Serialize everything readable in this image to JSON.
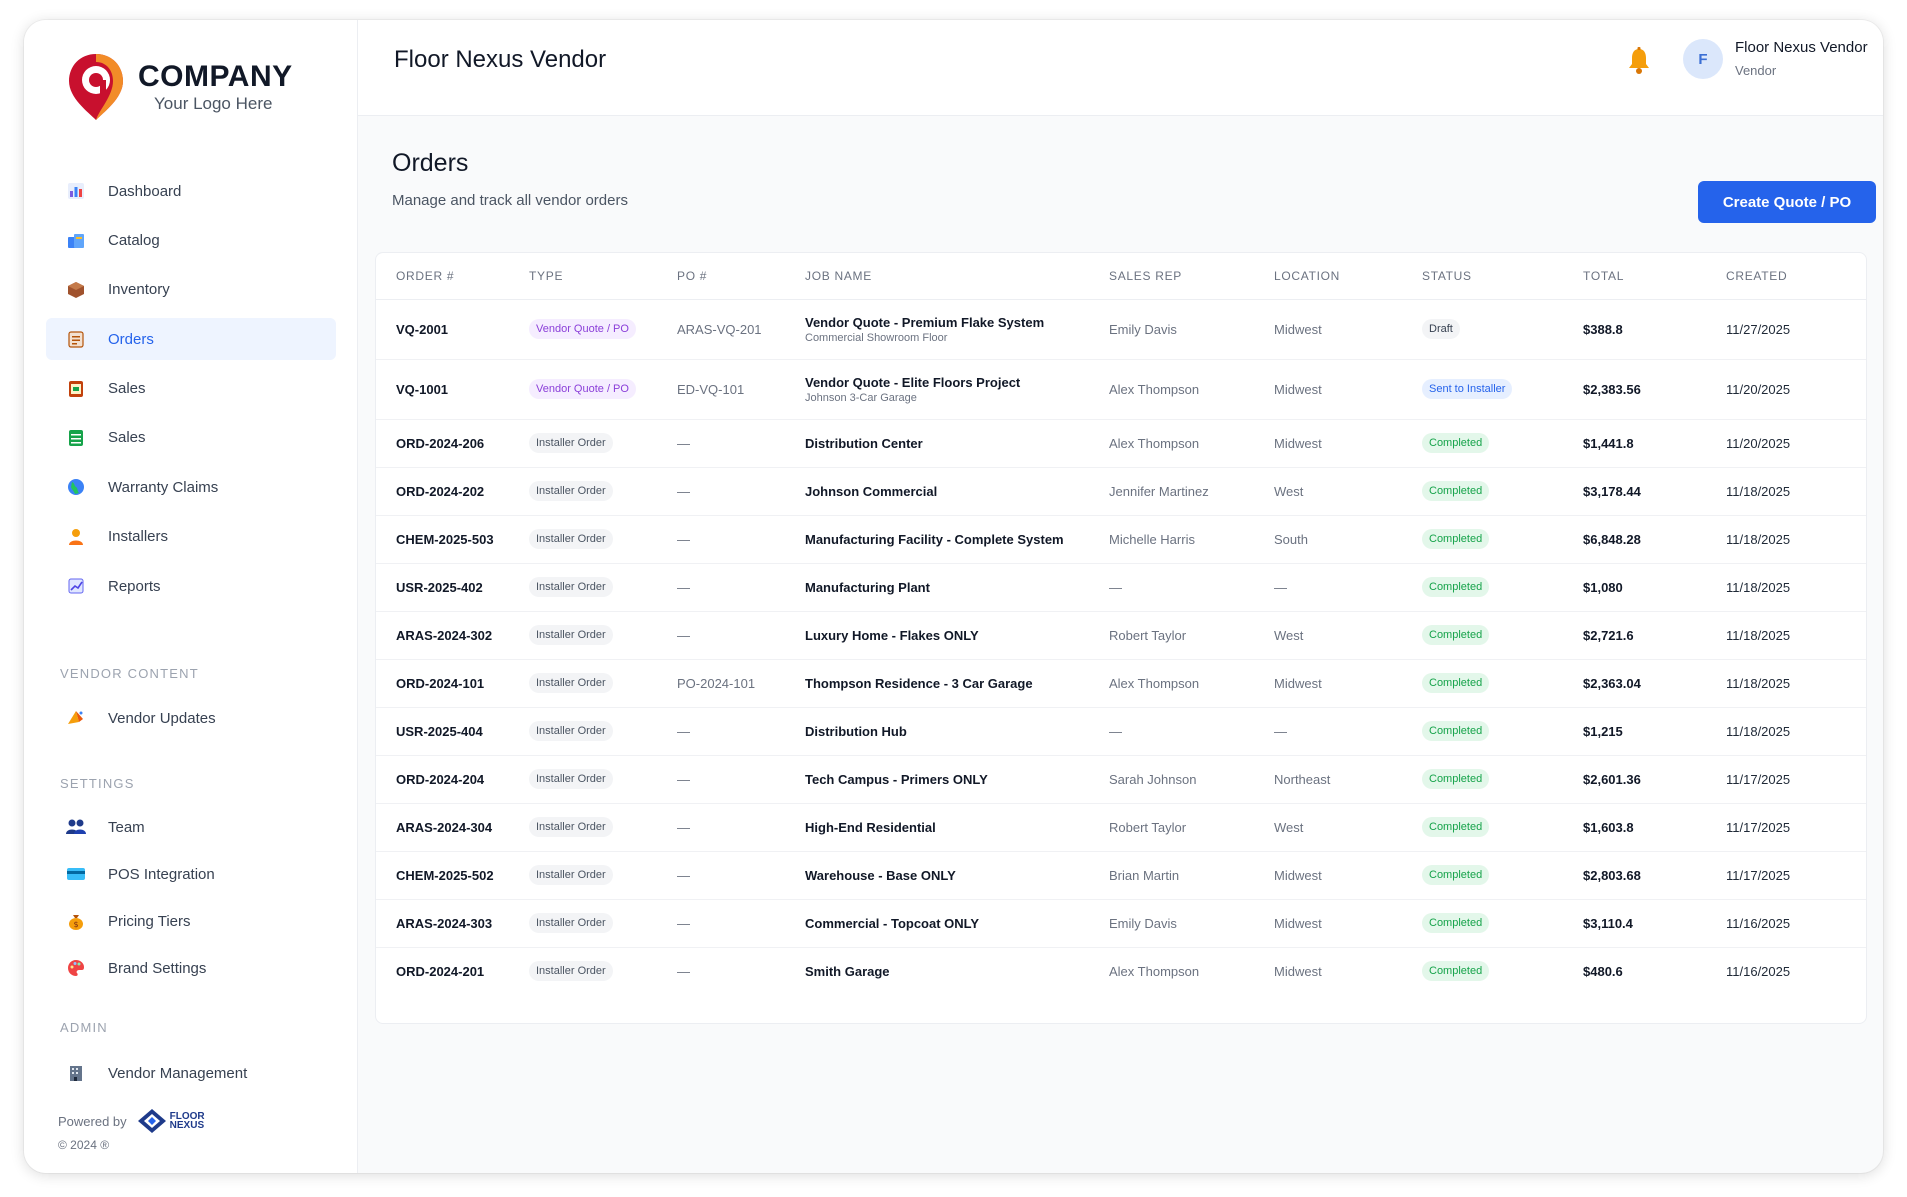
{
  "brand": {
    "name": "COMPANY",
    "tagline": "Your Logo Here",
    "colors": {
      "mark_red": "#c8102e",
      "mark_orange": "#f28c28"
    }
  },
  "sidebar": {
    "nav": [
      {
        "label": "Dashboard",
        "icon": "bar-chart-icon",
        "active": false
      },
      {
        "label": "Catalog",
        "icon": "catalog-icon",
        "active": false
      },
      {
        "label": "Inventory",
        "icon": "box-icon",
        "active": false
      },
      {
        "label": "Orders",
        "icon": "orders-icon",
        "active": true
      },
      {
        "label": "Sales",
        "icon": "sales-icon",
        "active": false
      },
      {
        "label": "Sales",
        "icon": "ledger-icon",
        "active": false
      },
      {
        "label": "Warranty Claims",
        "icon": "globe-icon",
        "active": false
      },
      {
        "label": "Installers",
        "icon": "person-icon",
        "active": false
      },
      {
        "label": "Reports",
        "icon": "report-icon",
        "active": false
      }
    ],
    "vendor_content": {
      "title": "VENDOR CONTENT",
      "items": [
        {
          "label": "Vendor Updates",
          "icon": "megaphone-icon"
        }
      ]
    },
    "settings": {
      "title": "SETTINGS",
      "items": [
        {
          "label": "Team",
          "icon": "team-icon"
        },
        {
          "label": "POS Integration",
          "icon": "card-icon"
        },
        {
          "label": "Pricing Tiers",
          "icon": "money-bag-icon"
        },
        {
          "label": "Brand Settings",
          "icon": "palette-icon"
        }
      ]
    },
    "admin": {
      "title": "ADMIN",
      "items": [
        {
          "label": "Vendor Management",
          "icon": "building-icon"
        }
      ]
    },
    "powered_by": "Powered by",
    "powered_logo": {
      "line1": "FLOOR",
      "line2": "NEXUS"
    },
    "copyright": "© 2024 ®"
  },
  "header": {
    "title": "Floor Nexus Vendor",
    "user": {
      "initial": "F",
      "name": "Floor Nexus Vendor",
      "role": "Vendor"
    }
  },
  "page": {
    "title": "Orders",
    "subtitle": "Manage and track all vendor orders",
    "create_button": "Create Quote / PO"
  },
  "table": {
    "columns": [
      "ORDER #",
      "TYPE",
      "PO #",
      "JOB NAME",
      "SALES REP",
      "LOCATION",
      "STATUS",
      "TOTAL",
      "CREATED"
    ],
    "rows": [
      {
        "order": "VQ-2001",
        "type": "Vendor Quote / PO",
        "type_kind": "vendor",
        "po": "ARAS-VQ-201",
        "job": "Vendor Quote - Premium Flake System",
        "job_sub": "Commercial Showroom Floor",
        "rep": "Emily Davis",
        "location": "Midwest",
        "status": "Draft",
        "status_kind": "draft",
        "total": "$388.8",
        "created": "11/27/2025"
      },
      {
        "order": "VQ-1001",
        "type": "Vendor Quote / PO",
        "type_kind": "vendor",
        "po": "ED-VQ-101",
        "job": "Vendor Quote - Elite Floors Project",
        "job_sub": "Johnson 3-Car Garage",
        "rep": "Alex Thompson",
        "location": "Midwest",
        "status": "Sent to Installer",
        "status_kind": "sent",
        "total": "$2,383.56",
        "created": "11/20/2025"
      },
      {
        "order": "ORD-2024-206",
        "type": "Installer Order",
        "type_kind": "installer",
        "po": "—",
        "job": "Distribution Center",
        "job_sub": "",
        "rep": "Alex Thompson",
        "location": "Midwest",
        "status": "Completed",
        "status_kind": "completed",
        "total": "$1,441.8",
        "created": "11/20/2025"
      },
      {
        "order": "ORD-2024-202",
        "type": "Installer Order",
        "type_kind": "installer",
        "po": "—",
        "job": "Johnson Commercial",
        "job_sub": "",
        "rep": "Jennifer Martinez",
        "location": "West",
        "status": "Completed",
        "status_kind": "completed",
        "total": "$3,178.44",
        "created": "11/18/2025"
      },
      {
        "order": "CHEM-2025-503",
        "type": "Installer Order",
        "type_kind": "installer",
        "po": "—",
        "job": "Manufacturing Facility - Complete System",
        "job_sub": "",
        "rep": "Michelle Harris",
        "location": "South",
        "status": "Completed",
        "status_kind": "completed",
        "total": "$6,848.28",
        "created": "11/18/2025"
      },
      {
        "order": "USR-2025-402",
        "type": "Installer Order",
        "type_kind": "installer",
        "po": "—",
        "job": "Manufacturing Plant",
        "job_sub": "",
        "rep": "—",
        "location": "—",
        "status": "Completed",
        "status_kind": "completed",
        "total": "$1,080",
        "created": "11/18/2025"
      },
      {
        "order": "ARAS-2024-302",
        "type": "Installer Order",
        "type_kind": "installer",
        "po": "—",
        "job": "Luxury Home - Flakes ONLY",
        "job_sub": "",
        "rep": "Robert Taylor",
        "location": "West",
        "status": "Completed",
        "status_kind": "completed",
        "total": "$2,721.6",
        "created": "11/18/2025"
      },
      {
        "order": "ORD-2024-101",
        "type": "Installer Order",
        "type_kind": "installer",
        "po": "PO-2024-101",
        "job": "Thompson Residence - 3 Car Garage",
        "job_sub": "",
        "rep": "Alex Thompson",
        "location": "Midwest",
        "status": "Completed",
        "status_kind": "completed",
        "total": "$2,363.04",
        "created": "11/18/2025"
      },
      {
        "order": "USR-2025-404",
        "type": "Installer Order",
        "type_kind": "installer",
        "po": "—",
        "job": "Distribution Hub",
        "job_sub": "",
        "rep": "—",
        "location": "—",
        "status": "Completed",
        "status_kind": "completed",
        "total": "$1,215",
        "created": "11/18/2025"
      },
      {
        "order": "ORD-2024-204",
        "type": "Installer Order",
        "type_kind": "installer",
        "po": "—",
        "job": "Tech Campus - Primers ONLY",
        "job_sub": "",
        "rep": "Sarah Johnson",
        "location": "Northeast",
        "status": "Completed",
        "status_kind": "completed",
        "total": "$2,601.36",
        "created": "11/17/2025"
      },
      {
        "order": "ARAS-2024-304",
        "type": "Installer Order",
        "type_kind": "installer",
        "po": "—",
        "job": "High-End Residential",
        "job_sub": "",
        "rep": "Robert Taylor",
        "location": "West",
        "status": "Completed",
        "status_kind": "completed",
        "total": "$1,603.8",
        "created": "11/17/2025"
      },
      {
        "order": "CHEM-2025-502",
        "type": "Installer Order",
        "type_kind": "installer",
        "po": "—",
        "job": "Warehouse - Base ONLY",
        "job_sub": "",
        "rep": "Brian Martin",
        "location": "Midwest",
        "status": "Completed",
        "status_kind": "completed",
        "total": "$2,803.68",
        "created": "11/17/2025"
      },
      {
        "order": "ARAS-2024-303",
        "type": "Installer Order",
        "type_kind": "installer",
        "po": "—",
        "job": "Commercial - Topcoat ONLY",
        "job_sub": "",
        "rep": "Emily Davis",
        "location": "Midwest",
        "status": "Completed",
        "status_kind": "completed",
        "total": "$3,110.4",
        "created": "11/16/2025"
      },
      {
        "order": "ORD-2024-201",
        "type": "Installer Order",
        "type_kind": "installer",
        "po": "—",
        "job": "Smith Garage",
        "job_sub": "",
        "rep": "Alex Thompson",
        "location": "Midwest",
        "status": "Completed",
        "status_kind": "completed",
        "total": "$480.6",
        "created": "11/16/2025"
      }
    ]
  }
}
